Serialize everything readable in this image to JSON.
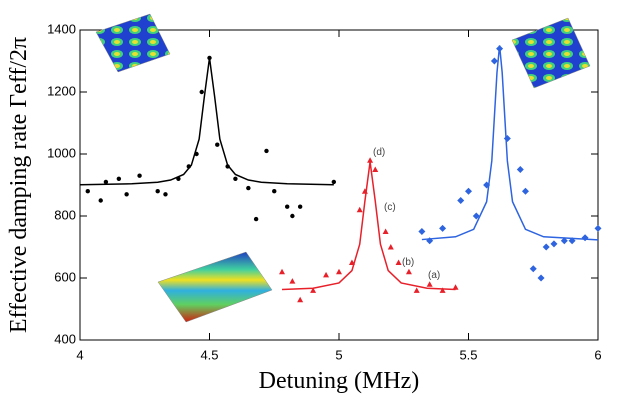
{
  "chart_data": {
    "type": "scatter",
    "xlabel": "Detuning (MHz)",
    "ylabel": "Effective damping rate Γeff/2π",
    "xlim": [
      4,
      6
    ],
    "xticks": [
      4,
      4.5,
      5,
      5.5,
      6
    ],
    "ylim": [
      400,
      1400
    ],
    "yticks": [
      400,
      600,
      800,
      1000,
      1200,
      1400
    ],
    "annotations": [
      "(a)",
      "(b)",
      "(c)",
      "(d)"
    ],
    "series": [
      {
        "color": "#000000",
        "marker": "circle",
        "x": [
          4.03,
          4.08,
          4.1,
          4.15,
          4.18,
          4.23,
          4.3,
          4.33,
          4.38,
          4.42,
          4.45,
          4.47,
          4.5,
          4.53,
          4.57,
          4.6,
          4.65,
          4.68,
          4.72,
          4.75,
          4.8,
          4.82,
          4.85,
          4.98
        ],
        "values": [
          880,
          850,
          910,
          920,
          870,
          930,
          880,
          870,
          920,
          960,
          1000,
          1200,
          1310,
          1030,
          960,
          920,
          890,
          790,
          1010,
          880,
          830,
          800,
          830,
          910
        ],
        "fit_x": [
          4.0,
          4.2,
          4.3,
          4.35,
          4.4,
          4.43,
          4.46,
          4.48,
          4.5,
          4.52,
          4.54,
          4.57,
          4.6,
          4.65,
          4.7,
          4.8,
          4.98
        ],
        "fit_values": [
          901,
          904,
          909,
          916,
          934,
          964,
          1048,
          1184,
          1310,
          1184,
          1048,
          964,
          934,
          916,
          909,
          904,
          901
        ]
      },
      {
        "color": "#e8202a",
        "marker": "triangle",
        "x": [
          4.78,
          4.82,
          4.85,
          4.9,
          4.95,
          5.0,
          5.05,
          5.08,
          5.1,
          5.12,
          5.14,
          5.18,
          5.2,
          5.23,
          5.27,
          5.3,
          5.35,
          5.4,
          5.45
        ],
        "values": [
          620,
          590,
          530,
          560,
          610,
          620,
          650,
          820,
          880,
          980,
          950,
          750,
          700,
          650,
          620,
          560,
          580,
          560,
          570
        ],
        "fit_x": [
          4.78,
          4.9,
          5.0,
          5.05,
          5.08,
          5.1,
          5.12,
          5.14,
          5.16,
          5.19,
          5.24,
          5.34,
          5.45
        ],
        "fit_values": [
          563,
          567,
          584,
          624,
          709,
          848,
          975,
          848,
          709,
          624,
          584,
          567,
          563
        ]
      },
      {
        "color": "#2e64e0",
        "marker": "diamond",
        "x": [
          5.32,
          5.35,
          5.4,
          5.47,
          5.5,
          5.53,
          5.57,
          5.6,
          5.62,
          5.65,
          5.7,
          5.72,
          5.75,
          5.78,
          5.8,
          5.83,
          5.87,
          5.9,
          5.95,
          6.0
        ],
        "values": [
          750,
          720,
          760,
          850,
          880,
          800,
          900,
          1300,
          1340,
          1050,
          950,
          880,
          630,
          600,
          700,
          710,
          720,
          720,
          730,
          760
        ],
        "fit_x": [
          5.32,
          5.45,
          5.52,
          5.57,
          5.59,
          5.61,
          5.62,
          5.63,
          5.65,
          5.67,
          5.72,
          5.79,
          6.0
        ],
        "fit_values": [
          724,
          733,
          757,
          846,
          978,
          1263,
          1350,
          1263,
          978,
          846,
          757,
          733,
          723
        ]
      }
    ]
  }
}
